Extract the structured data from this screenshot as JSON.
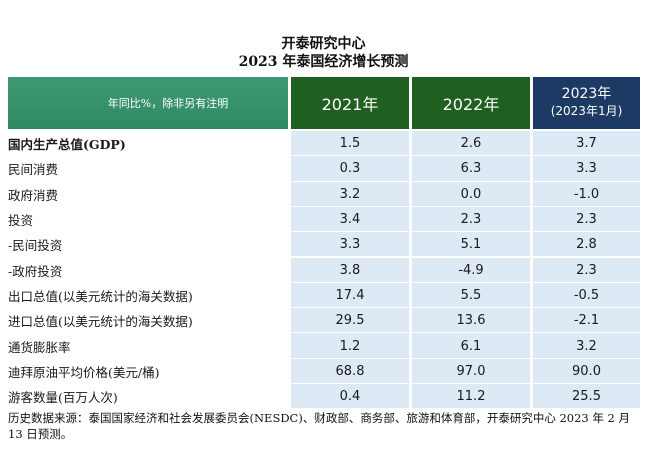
{
  "title_line1": "开泰研究中心",
  "title_line2": "2023 年泰国经济增长预测",
  "header": {
    "label": "年同比%，除非另有注明",
    "col_2021": "2021年",
    "col_2022": "2022年",
    "col_2023": "2023年",
    "col_2023_sub": "(2023年1月)"
  },
  "rows": [
    {
      "label": "国内生产总值(GDP)",
      "v2021": "1.5",
      "v2022": "2.6",
      "v2023": "3.7"
    },
    {
      "label": "民间消费",
      "v2021": "0.3",
      "v2022": "6.3",
      "v2023": "3.3"
    },
    {
      "label": "政府消费",
      "v2021": "3.2",
      "v2022": "0.0",
      "v2023": "-1.0"
    },
    {
      "label": "投资",
      "v2021": "3.4",
      "v2022": "2.3",
      "v2023": "2.3"
    },
    {
      "label": "-民间投资",
      "v2021": "3.3",
      "v2022": "5.1",
      "v2023": "2.8"
    },
    {
      "label": "-政府投资",
      "v2021": "3.8",
      "v2022": "-4.9",
      "v2023": "2.3"
    },
    {
      "label": "出口总值(以美元统计的海关数据)",
      "v2021": "17.4",
      "v2022": "5.5",
      "v2023": "-0.5"
    },
    {
      "label": "进口总值(以美元统计的海关数据)",
      "v2021": "29.5",
      "v2022": "13.6",
      "v2023": "-2.1"
    },
    {
      "label": "通货膨胀率",
      "v2021": "1.2",
      "v2022": "6.1",
      "v2023": "3.2"
    },
    {
      "label": "迪拜原油平均价格(美元/桶)",
      "v2021": "68.8",
      "v2022": "97.0",
      "v2023": "90.0"
    },
    {
      "label": "游客数量(百万人次)",
      "v2021": "0.4",
      "v2022": "11.2",
      "v2023": "25.5"
    }
  ],
  "footnote": "历史数据来源：泰国国家经济和社会发展委员会(NESDC)、财政部、商务部、旅游和体育部，开泰研究中心 2023 年 2 月 13 日预测。"
}
